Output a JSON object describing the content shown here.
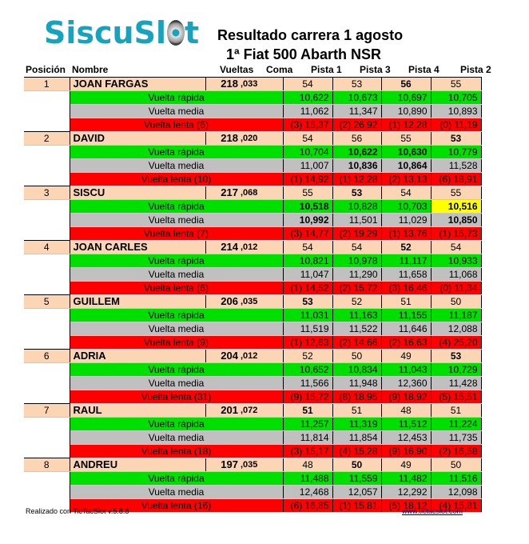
{
  "logo": {
    "text": "SiscuSl",
    "last": "t"
  },
  "title": "Resultado carrera  1 agosto",
  "subtitle": "1ª Fiat 500 Abarth NSR",
  "headers": {
    "posicion": "Posición",
    "nombre": "Nombre",
    "vueltas": "Vueltas",
    "coma": "Coma",
    "pistas": [
      "Pista 1",
      "Pista 3",
      "Pista 4",
      "Pista 2"
    ]
  },
  "labels": {
    "rapida": "Vuelta rápida",
    "media": "Vuelta media",
    "lenta": "Vuelta  lenta"
  },
  "drivers": [
    {
      "pos": "1",
      "name": "JOAN FARGAS",
      "vueltas": "218",
      "coma": ",033",
      "laps": [
        "54",
        "53",
        "56",
        "55"
      ],
      "laps_bold": [
        false,
        false,
        true,
        false
      ],
      "rapida": [
        "10,622",
        "10,673",
        "10,697",
        "10,705"
      ],
      "rapida_bold": [
        false,
        false,
        false,
        false
      ],
      "media": [
        "11,062",
        "11,347",
        "10,890",
        "10,893"
      ],
      "media_bold": [
        false,
        false,
        false,
        false
      ],
      "lenta_n": "(6)",
      "lenta": [
        "(3) 15,37",
        "(2) 26,92",
        "(1) 12,28",
        "(0) 11,19"
      ]
    },
    {
      "pos": "2",
      "name": "DAVID",
      "vueltas": "218",
      "coma": ",020",
      "laps": [
        "54",
        "56",
        "55",
        "53"
      ],
      "laps_bold": [
        false,
        false,
        false,
        true
      ],
      "rapida": [
        "10,704",
        "10,622",
        "10,630",
        "10,779"
      ],
      "rapida_bold": [
        false,
        true,
        true,
        false
      ],
      "media": [
        "11,007",
        "10,836",
        "10,864",
        "11,528"
      ],
      "media_bold": [
        false,
        true,
        true,
        false
      ],
      "lenta_n": "(10)",
      "lenta": [
        "(1) 14,92",
        "(1) 12,28",
        "(2) 13,13",
        "(6) 18,91"
      ]
    },
    {
      "pos": "3",
      "name": "SISCU",
      "vueltas": "217",
      "coma": ",068",
      "laps": [
        "55",
        "53",
        "54",
        "55"
      ],
      "laps_bold": [
        false,
        true,
        false,
        false
      ],
      "rapida": [
        "10,518",
        "10,828",
        "10,703",
        "10,516"
      ],
      "rapida_bold": [
        true,
        false,
        false,
        true
      ],
      "media": [
        "10,992",
        "11,501",
        "11,029",
        "10,850"
      ],
      "media_bold": [
        true,
        false,
        false,
        true
      ],
      "lenta_n": "(7)",
      "lenta": [
        "(3) 14,77",
        "(2) 19,29",
        "(1) 13,76",
        "(1) 15,73"
      ]
    },
    {
      "pos": "4",
      "name": "JOAN CARLES",
      "vueltas": "214",
      "coma": ",012",
      "laps": [
        "54",
        "54",
        "52",
        "54"
      ],
      "laps_bold": [
        false,
        false,
        true,
        false
      ],
      "rapida": [
        "10,821",
        "10,978",
        "11,117",
        "10,933"
      ],
      "rapida_bold": [
        false,
        false,
        false,
        false
      ],
      "media": [
        "11,047",
        "11,290",
        "11,658",
        "11,068"
      ],
      "media_bold": [
        false,
        false,
        false,
        false
      ],
      "lenta_n": "(6)",
      "lenta": [
        "(1) 14,52",
        "(2) 15,72",
        "(3) 16,46",
        "(0) 11,34"
      ]
    },
    {
      "pos": "5",
      "name": "GUILLEM",
      "vueltas": "206",
      "coma": ",035",
      "laps": [
        "53",
        "52",
        "51",
        "50"
      ],
      "laps_bold": [
        true,
        false,
        false,
        false
      ],
      "rapida": [
        "11,031",
        "11,163",
        "11,155",
        "11,187"
      ],
      "rapida_bold": [
        false,
        false,
        false,
        false
      ],
      "media": [
        "11,519",
        "11,522",
        "11,646",
        "12,088"
      ],
      "media_bold": [
        false,
        false,
        false,
        false
      ],
      "lenta_n": "(9)",
      "lenta": [
        "(1) 12,63",
        "(2) 14,66",
        "(2) 16,63",
        "(4) 25,20"
      ]
    },
    {
      "pos": "6",
      "name": "ADRIA",
      "vueltas": "204",
      "coma": ",012",
      "laps": [
        "52",
        "50",
        "49",
        "53"
      ],
      "laps_bold": [
        false,
        false,
        false,
        true
      ],
      "rapida": [
        "10,652",
        "10,834",
        "11,043",
        "10,729"
      ],
      "rapida_bold": [
        false,
        false,
        false,
        false
      ],
      "media": [
        "11,566",
        "11,948",
        "12,360",
        "11,428"
      ],
      "media_bold": [
        false,
        false,
        false,
        false
      ],
      "lenta_n": "(31)",
      "lenta": [
        "(9) 15,72",
        "(8) 18,95",
        "(9) 18,92",
        "(5) 15,51"
      ]
    },
    {
      "pos": "7",
      "name": "RAUL",
      "vueltas": "201",
      "coma": ",072",
      "laps": [
        "51",
        "51",
        "48",
        "51"
      ],
      "laps_bold": [
        true,
        false,
        false,
        false
      ],
      "rapida": [
        "11,257",
        "11,319",
        "11,512",
        "11,224"
      ],
      "rapida_bold": [
        false,
        false,
        false,
        false
      ],
      "media": [
        "11,814",
        "11,854",
        "12,453",
        "11,735"
      ],
      "media_bold": [
        false,
        false,
        false,
        false
      ],
      "lenta_n": "(18)",
      "lenta": [
        "(3) 15,17",
        "(4) 15,28",
        "(9) 16,90",
        "(2) 16,58"
      ]
    },
    {
      "pos": "8",
      "name": "ANDREU",
      "vueltas": "197",
      "coma": ",035",
      "laps": [
        "48",
        "50",
        "49",
        "50"
      ],
      "laps_bold": [
        false,
        true,
        false,
        false
      ],
      "rapida": [
        "11,488",
        "11,559",
        "11,482",
        "11,516"
      ],
      "rapida_bold": [
        false,
        false,
        false,
        false
      ],
      "media": [
        "12,468",
        "12,057",
        "12,292",
        "12,098"
      ],
      "media_bold": [
        false,
        false,
        false,
        false
      ],
      "lenta_n": "(16)",
      "lenta": [
        "(6) 16,85",
        "(1) 15,81",
        "(5) 18,12",
        "(4) 15,81"
      ]
    }
  ],
  "highlight": {
    "driver": "SISCU",
    "row": "rapida",
    "pista": "Pista 2",
    "color": "#ffff00"
  },
  "colors": {
    "peach": "#fcd5b4",
    "green": "#00e000",
    "grey": "#c0c0c0",
    "red": "#ff0000",
    "logo": "#17a3bd"
  },
  "footer": {
    "left": "Realizado con TicTacSlot v.5.8.8",
    "right": "www.tictacslot.com"
  }
}
